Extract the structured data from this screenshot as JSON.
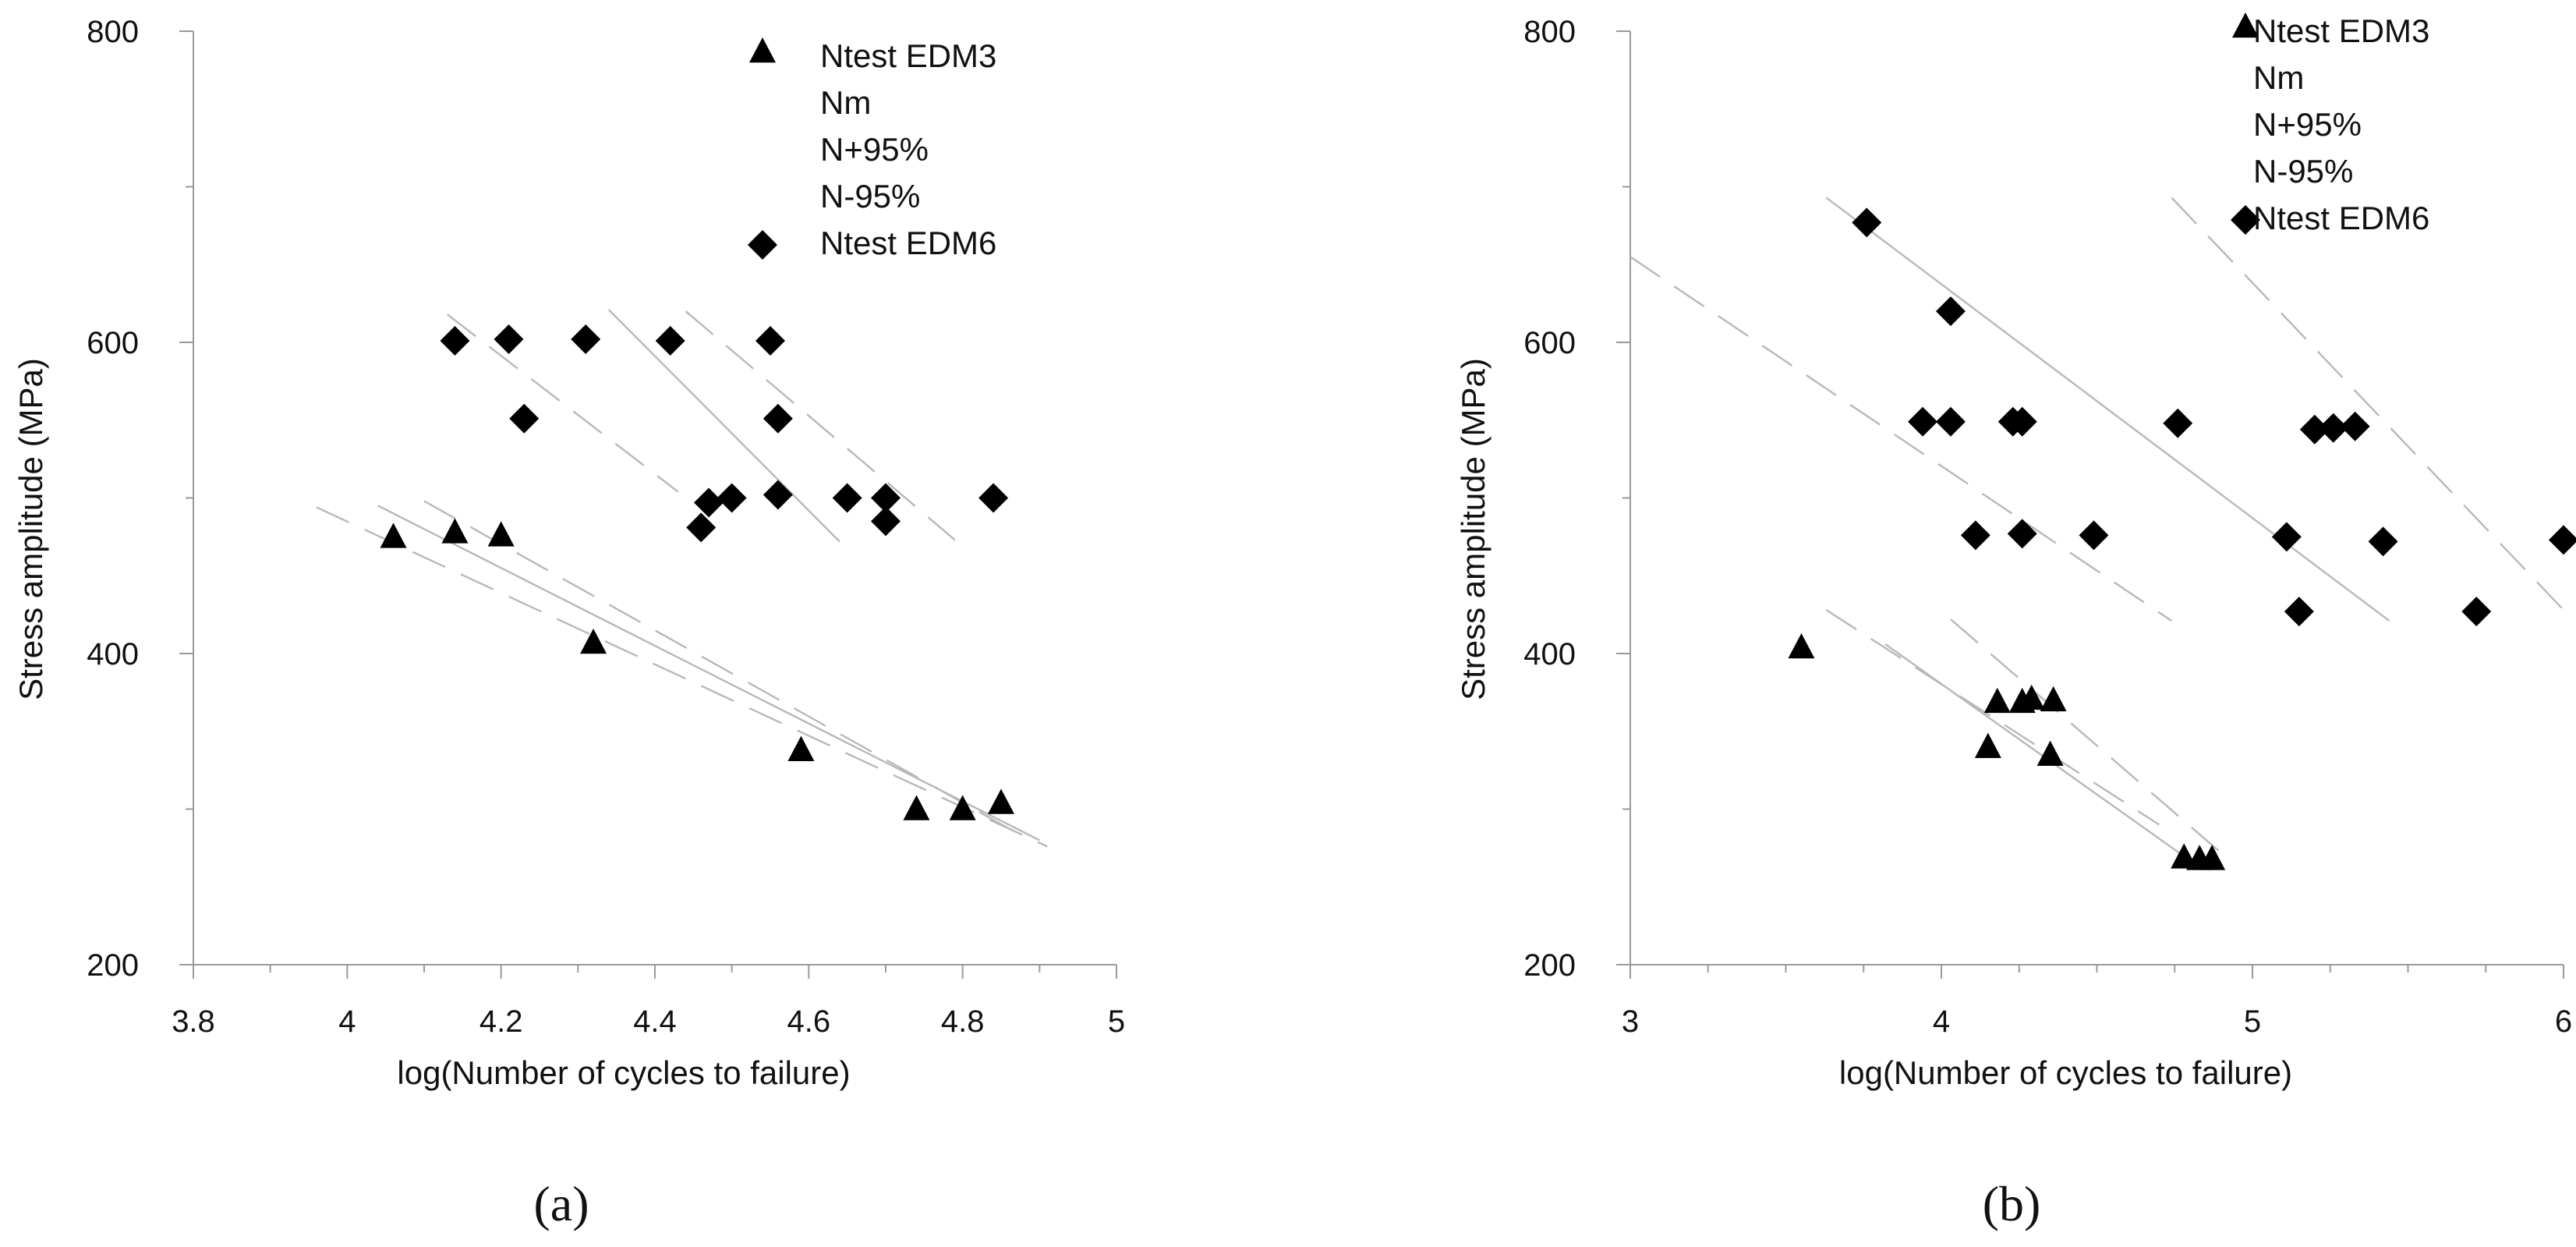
{
  "chart_data": [
    {
      "type": "scatter",
      "panel_label": "(a)",
      "xlabel": "log(Number of cycles to failure)",
      "ylabel": "Stress amplitude (MPa)",
      "xlim": [
        3.8,
        5.0
      ],
      "ylim": [
        200,
        800
      ],
      "xticks": [
        3.8,
        4,
        4.2,
        4.4,
        4.6,
        4.8,
        5
      ],
      "xtick_labels": [
        "3.8",
        "4",
        "4.2",
        "4.4",
        "4.6",
        "4.8",
        "5"
      ],
      "yticks": [
        200,
        400,
        600,
        800
      ],
      "ytick_labels": [
        "200",
        "400",
        "600",
        "800"
      ],
      "legend": {
        "position": "top-right",
        "entries": [
          {
            "label": "Ntest EDM3",
            "marker": "triangle"
          },
          {
            "label": "Nm",
            "marker": "none"
          },
          {
            "label": "N+95%",
            "marker": "none"
          },
          {
            "label": "N-95%",
            "marker": "none"
          },
          {
            "label": "Ntest EDM6",
            "marker": "diamond"
          }
        ]
      },
      "series": [
        {
          "name": "Ntest EDM3",
          "marker": "triangle",
          "points": [
            [
              4.06,
              474
            ],
            [
              4.14,
              477
            ],
            [
              4.2,
              475
            ],
            [
              4.32,
              406
            ],
            [
              4.59,
              337
            ],
            [
              4.74,
              299
            ],
            [
              4.8,
              299
            ],
            [
              4.85,
              303
            ]
          ]
        },
        {
          "name": "Ntest EDM6",
          "marker": "diamond",
          "points": [
            [
              4.14,
              601
            ],
            [
              4.21,
              602
            ],
            [
              4.23,
              551
            ],
            [
              4.31,
              602
            ],
            [
              4.42,
              601
            ],
            [
              4.55,
              601
            ],
            [
              4.56,
              551
            ],
            [
              4.46,
              481
            ],
            [
              4.47,
              497
            ],
            [
              4.5,
              500
            ],
            [
              4.56,
              502
            ],
            [
              4.65,
              500
            ],
            [
              4.7,
              500
            ],
            [
              4.7,
              485
            ],
            [
              4.84,
              500
            ]
          ]
        }
      ],
      "lines": [
        {
          "name": "Nm",
          "group": "EDM3",
          "style": "solid",
          "points": [
            [
              4.04,
              495
            ],
            [
              4.9,
              280
            ]
          ]
        },
        {
          "name": "N+95%",
          "group": "EDM3",
          "style": "dashed",
          "points": [
            [
              4.1,
              498
            ],
            [
              4.88,
              282
            ]
          ]
        },
        {
          "name": "N-95%",
          "group": "EDM3",
          "style": "dashed",
          "points": [
            [
              3.96,
              494
            ],
            [
              4.91,
              276
            ]
          ]
        },
        {
          "name": "Nm",
          "group": "EDM6",
          "style": "solid",
          "points": [
            [
              4.34,
              621
            ],
            [
              4.64,
              472
            ]
          ]
        },
        {
          "name": "N+95%",
          "group": "EDM6",
          "style": "dashed",
          "points": [
            [
              4.44,
              620
            ],
            [
              4.79,
              473
            ]
          ]
        },
        {
          "name": "N-95%",
          "group": "EDM6",
          "style": "dashed",
          "points": [
            [
              4.13,
              618
            ],
            [
              4.43,
              504
            ]
          ]
        }
      ]
    },
    {
      "type": "scatter",
      "panel_label": "(b)",
      "xlabel": "log(Number of cycles to failure)",
      "ylabel": "Stress amplitude (MPa)",
      "xlim": [
        3,
        6
      ],
      "ylim": [
        200,
        800
      ],
      "xticks": [
        3,
        4,
        5,
        6
      ],
      "xtick_labels": [
        "3",
        "4",
        "5",
        "6"
      ],
      "yticks": [
        200,
        400,
        600,
        800
      ],
      "ytick_labels": [
        "200",
        "400",
        "600",
        "800"
      ],
      "legend": {
        "position": "top-right",
        "entries": [
          {
            "label": "Ntest EDM3",
            "marker": "triangle"
          },
          {
            "label": "Nm",
            "marker": "none"
          },
          {
            "label": "N+95%",
            "marker": "none"
          },
          {
            "label": "N-95%",
            "marker": "none"
          },
          {
            "label": "Ntest EDM6",
            "marker": "diamond"
          }
        ]
      },
      "series": [
        {
          "name": "Ntest EDM3",
          "marker": "triangle",
          "points": [
            [
              3.55,
              403
            ],
            [
              4.15,
              339
            ],
            [
              4.18,
              368
            ],
            [
              4.26,
              368
            ],
            [
              4.29,
              370
            ],
            [
              4.35,
              334
            ],
            [
              4.36,
              369
            ],
            [
              4.78,
              268
            ],
            [
              4.83,
              267
            ],
            [
              4.87,
              267
            ]
          ]
        },
        {
          "name": "Ntest EDM6",
          "marker": "diamond",
          "points": [
            [
              3.76,
              677
            ],
            [
              4.03,
              620
            ],
            [
              3.94,
              549
            ],
            [
              4.03,
              549
            ],
            [
              4.23,
              549
            ],
            [
              4.26,
              549
            ],
            [
              4.76,
              548
            ],
            [
              5.2,
              544
            ],
            [
              5.26,
              545
            ],
            [
              5.33,
              546
            ],
            [
              4.11,
              476
            ],
            [
              4.26,
              477
            ],
            [
              4.49,
              476
            ],
            [
              5.11,
              475
            ],
            [
              5.42,
              472
            ],
            [
              6.0,
              473
            ],
            [
              5.15,
              427
            ],
            [
              5.72,
              427
            ]
          ]
        }
      ],
      "lines": [
        {
          "name": "Nm",
          "group": "EDM6",
          "style": "solid",
          "points": [
            [
              3.63,
              693
            ],
            [
              5.44,
              421
            ]
          ]
        },
        {
          "name": "N+95%",
          "group": "EDM6",
          "style": "dashed",
          "points": [
            [
              4.74,
              693
            ],
            [
              6.0,
              428
            ]
          ]
        },
        {
          "name": "N-95%",
          "group": "EDM6",
          "style": "dashed",
          "points": [
            [
              3.0,
              655
            ],
            [
              4.74,
              421
            ]
          ]
        },
        {
          "name": "Nm",
          "group": "EDM3",
          "style": "solid",
          "points": [
            [
              3.82,
              406
            ],
            [
              4.82,
              264
            ]
          ]
        },
        {
          "name": "N+95%",
          "group": "EDM3",
          "style": "dashed",
          "points": [
            [
              4.03,
              422
            ],
            [
              4.91,
              270
            ]
          ]
        },
        {
          "name": "N-95%",
          "group": "EDM3",
          "style": "dashed",
          "points": [
            [
              3.63,
              428
            ],
            [
              4.7,
              290
            ]
          ]
        }
      ]
    }
  ]
}
